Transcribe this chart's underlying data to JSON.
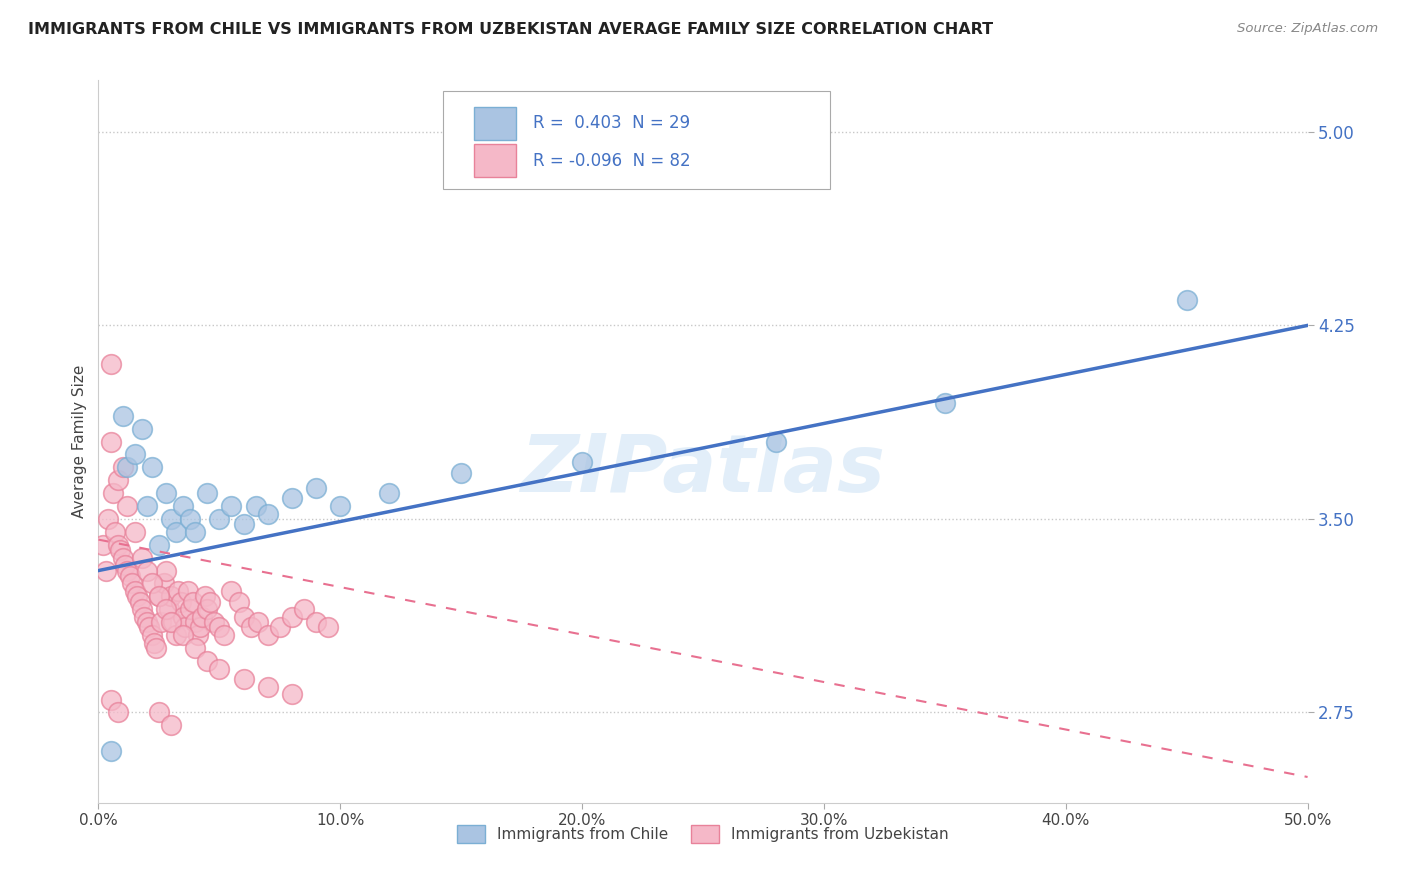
{
  "title": "IMMIGRANTS FROM CHILE VS IMMIGRANTS FROM UZBEKISTAN AVERAGE FAMILY SIZE CORRELATION CHART",
  "source": "Source: ZipAtlas.com",
  "ylabel": "Average Family Size",
  "xlim": [
    0.0,
    0.5
  ],
  "ylim": [
    2.4,
    5.2
  ],
  "yticks": [
    2.75,
    3.5,
    4.25,
    5.0
  ],
  "xticks": [
    0.0,
    0.1,
    0.2,
    0.3,
    0.4,
    0.5
  ],
  "xtick_labels": [
    "0.0%",
    "10.0%",
    "20.0%",
    "30.0%",
    "40.0%",
    "50.0%"
  ],
  "watermark": "ZIPatlas",
  "legend_R_chile": " 0.403",
  "legend_N_chile": "29",
  "legend_R_uzb": "-0.096",
  "legend_N_uzb": "82",
  "chile_color": "#aac4e2",
  "chile_edge": "#7bafd4",
  "uzb_color": "#f5b8c8",
  "uzb_edge": "#e8829a",
  "trend_chile_color": "#4472c4",
  "trend_uzb_color": "#e87090",
  "label_color": "#4472c4",
  "background": "#ffffff",
  "grid_color": "#c8c8c8",
  "chile_scatter_x": [
    0.005,
    0.01,
    0.012,
    0.015,
    0.018,
    0.02,
    0.022,
    0.025,
    0.028,
    0.03,
    0.032,
    0.035,
    0.038,
    0.04,
    0.045,
    0.05,
    0.055,
    0.06,
    0.065,
    0.07,
    0.08,
    0.09,
    0.1,
    0.12,
    0.15,
    0.2,
    0.28,
    0.35,
    0.45
  ],
  "chile_scatter_y": [
    2.6,
    3.9,
    3.7,
    3.75,
    3.85,
    3.55,
    3.7,
    3.4,
    3.6,
    3.5,
    3.45,
    3.55,
    3.5,
    3.45,
    3.6,
    3.5,
    3.55,
    3.48,
    3.55,
    3.52,
    3.58,
    3.62,
    3.55,
    3.6,
    3.68,
    3.72,
    3.8,
    3.95,
    4.35
  ],
  "uzb_scatter_x": [
    0.002,
    0.003,
    0.004,
    0.005,
    0.006,
    0.007,
    0.008,
    0.009,
    0.01,
    0.011,
    0.012,
    0.013,
    0.014,
    0.015,
    0.016,
    0.017,
    0.018,
    0.019,
    0.02,
    0.021,
    0.022,
    0.023,
    0.024,
    0.025,
    0.026,
    0.027,
    0.028,
    0.029,
    0.03,
    0.031,
    0.032,
    0.033,
    0.034,
    0.035,
    0.036,
    0.037,
    0.038,
    0.039,
    0.04,
    0.041,
    0.042,
    0.043,
    0.044,
    0.045,
    0.046,
    0.048,
    0.05,
    0.052,
    0.055,
    0.058,
    0.06,
    0.063,
    0.066,
    0.07,
    0.075,
    0.08,
    0.085,
    0.09,
    0.095,
    0.005,
    0.008,
    0.01,
    0.012,
    0.015,
    0.018,
    0.02,
    0.022,
    0.025,
    0.028,
    0.03,
    0.035,
    0.04,
    0.045,
    0.05,
    0.06,
    0.07,
    0.08,
    0.025,
    0.03,
    0.005,
    0.008
  ],
  "uzb_scatter_y": [
    3.4,
    3.3,
    3.5,
    3.8,
    3.6,
    3.45,
    3.4,
    3.38,
    3.35,
    3.32,
    3.3,
    3.28,
    3.25,
    3.22,
    3.2,
    3.18,
    3.15,
    3.12,
    3.1,
    3.08,
    3.05,
    3.02,
    3.0,
    3.2,
    3.1,
    3.25,
    3.3,
    3.15,
    3.2,
    3.1,
    3.05,
    3.22,
    3.18,
    3.12,
    3.08,
    3.22,
    3.15,
    3.18,
    3.1,
    3.05,
    3.08,
    3.12,
    3.2,
    3.15,
    3.18,
    3.1,
    3.08,
    3.05,
    3.22,
    3.18,
    3.12,
    3.08,
    3.1,
    3.05,
    3.08,
    3.12,
    3.15,
    3.1,
    3.08,
    4.1,
    3.65,
    3.7,
    3.55,
    3.45,
    3.35,
    3.3,
    3.25,
    3.2,
    3.15,
    3.1,
    3.05,
    3.0,
    2.95,
    2.92,
    2.88,
    2.85,
    2.82,
    2.75,
    2.7,
    2.8,
    2.75
  ],
  "trend_chile_x0": 0.0,
  "trend_chile_y0": 3.3,
  "trend_chile_x1": 0.5,
  "trend_chile_y1": 4.25,
  "trend_uzb_x0": 0.0,
  "trend_uzb_y0": 3.42,
  "trend_uzb_x1": 0.5,
  "trend_uzb_y1": 2.5
}
